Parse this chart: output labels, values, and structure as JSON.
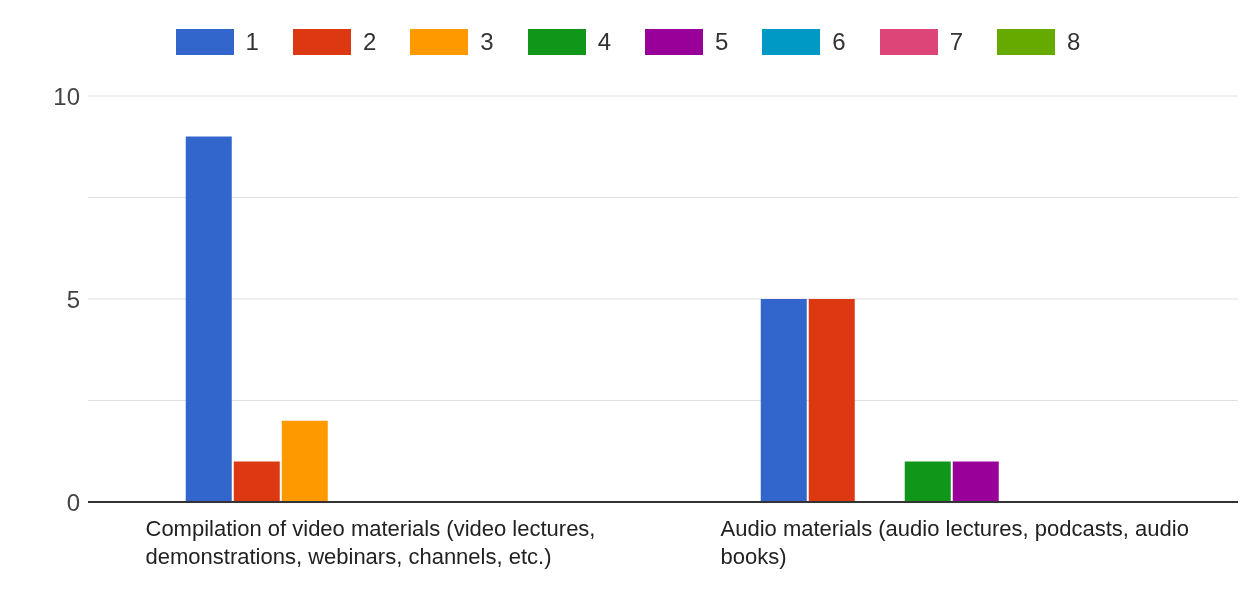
{
  "chart_data": {
    "type": "bar",
    "categories": [
      "Compilation of video materials (video lectures, demonstrations, webinars, channels, etc.)",
      "Audio materials (audio lectures, podcasts, audio books)"
    ],
    "series": [
      {
        "name": "1",
        "color": "#3366cc",
        "values": [
          9,
          5
        ]
      },
      {
        "name": "2",
        "color": "#dc3912",
        "values": [
          1,
          5
        ]
      },
      {
        "name": "3",
        "color": "#ff9900",
        "values": [
          2,
          0
        ]
      },
      {
        "name": "4",
        "color": "#109618",
        "values": [
          0,
          1
        ]
      },
      {
        "name": "5",
        "color": "#990099",
        "values": [
          0,
          1
        ]
      },
      {
        "name": "6",
        "color": "#0099c6",
        "values": [
          0,
          0
        ]
      },
      {
        "name": "7",
        "color": "#dd4477",
        "values": [
          0,
          0
        ]
      },
      {
        "name": "8",
        "color": "#66aa00",
        "values": [
          0,
          0
        ]
      }
    ],
    "ylim": [
      0,
      10
    ],
    "yticks": [
      0,
      {
        "value": 2.5,
        "label": null
      },
      5,
      {
        "value": 7.5,
        "label": null
      },
      10
    ],
    "grid": "y",
    "legend": "top"
  }
}
